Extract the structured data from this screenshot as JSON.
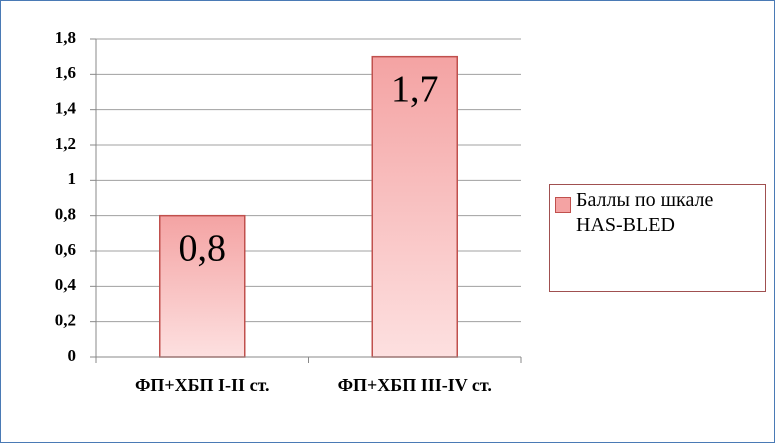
{
  "chart_data": {
    "type": "bar",
    "categories": [
      "ФП+ХБП I-II ст.",
      "ФП+ХБП III-IV ст."
    ],
    "series": [
      {
        "name": "Баллы по шкале HAS-BLED",
        "color": "#f4a3a3",
        "values": [
          0.8,
          1.7
        ],
        "value_labels": [
          "0,8",
          "1,7"
        ]
      }
    ],
    "ylim": [
      0,
      1.8
    ],
    "yticks": [
      0,
      {
        "value": 0.2,
        "label": "0,2"
      },
      {
        "value": 0.4,
        "label": "0,4"
      },
      {
        "value": 0.6,
        "label": "0,6"
      },
      {
        "value": 0.8,
        "label": "0,8"
      },
      1,
      {
        "value": 1.2,
        "label": "1,2"
      },
      {
        "value": 1.4,
        "label": "1,4"
      },
      {
        "value": 1.6,
        "label": "1,6"
      },
      {
        "value": 1.8,
        "label": "1,8"
      }
    ],
    "grid": true,
    "legend": "right"
  }
}
